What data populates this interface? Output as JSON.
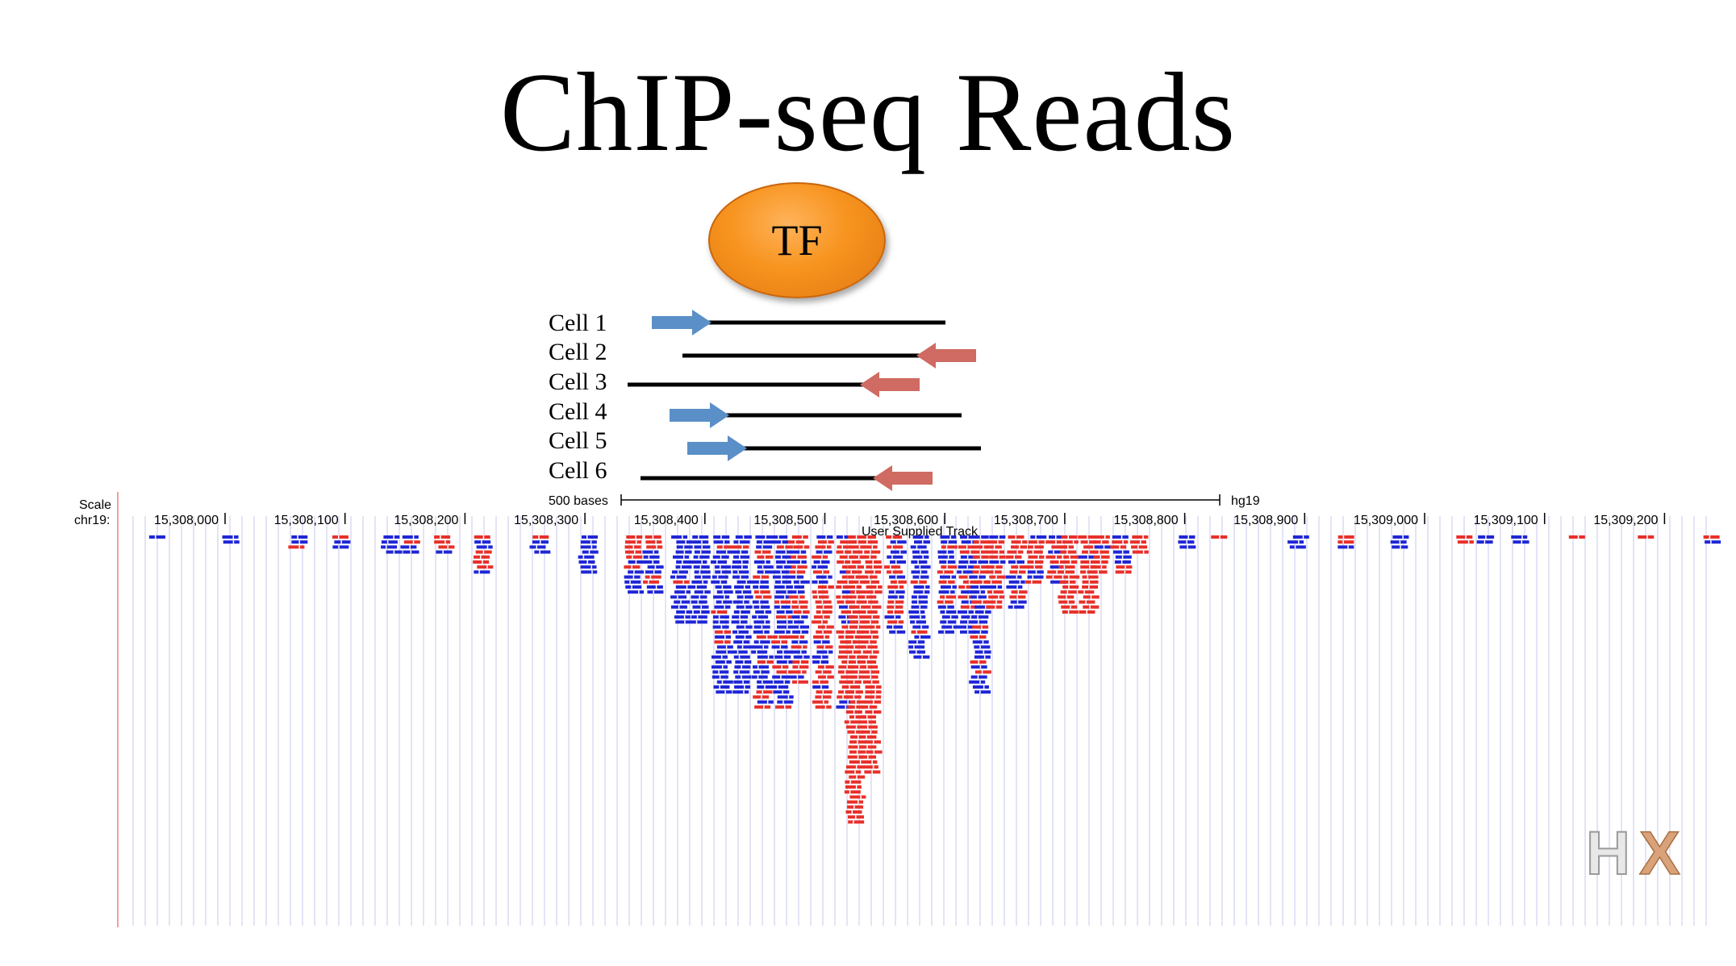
{
  "slide": {
    "title": "ChIP-seq Reads",
    "tf_label": "TF"
  },
  "cells": [
    {
      "label": "Cell 1",
      "arrow": "forward"
    },
    {
      "label": "Cell 2",
      "arrow": "reverse"
    },
    {
      "label": "Cell 3",
      "arrow": "reverse"
    },
    {
      "label": "Cell 4",
      "arrow": "forward"
    },
    {
      "label": "Cell 5",
      "arrow": "forward"
    },
    {
      "label": "Cell 6",
      "arrow": "reverse"
    }
  ],
  "browser": {
    "scale_label": "Scale",
    "chrom_label": "chr19:",
    "scalebar_label": "500 bases",
    "assembly": "hg19",
    "track_name": "User Supplied Track",
    "positions": [
      "15,308,000",
      "15,308,100",
      "15,308,200",
      "15,308,300",
      "15,308,400",
      "15,308,500",
      "15,308,600",
      "15,308,700",
      "15,308,800",
      "15,308,900",
      "15,309,000",
      "15,309,100",
      "15,309,200"
    ]
  },
  "colors": {
    "forward_read": "#1f26d6",
    "reverse_read": "#e8302a",
    "forward_arrow": "#5b8fc7",
    "reverse_arrow": "#cf6b62",
    "tf_fill": "#f7931e",
    "grid_line": "#c8c8ee"
  },
  "watermark": {
    "text": "HX"
  }
}
